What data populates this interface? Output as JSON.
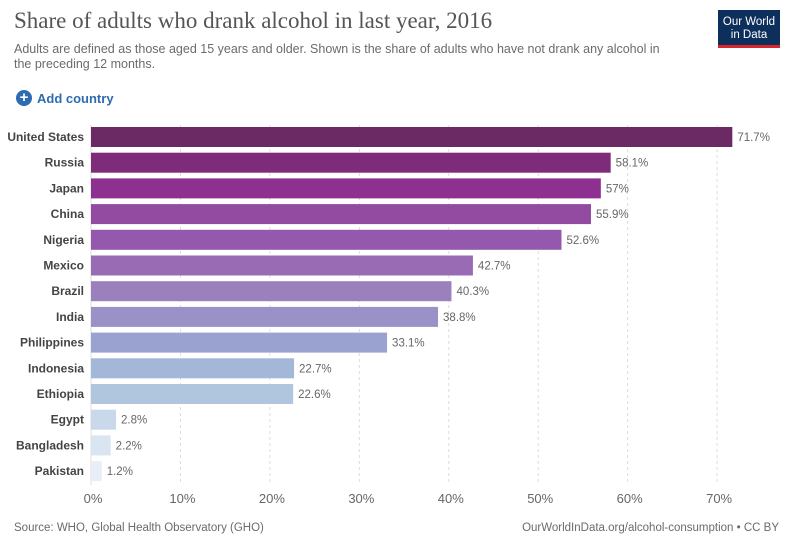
{
  "header": {
    "title": "Share of adults who drank alcohol in last year, 2016",
    "subtitle": "Adults are defined as those aged 15 years and older. Shown is the share of adults who have not drank any alcohol in the preceding 12 months.",
    "logo_line1": "Our World",
    "logo_line2": "in Data"
  },
  "controls": {
    "add_country_label": "Add country",
    "add_icon": "plus-circle-icon"
  },
  "footer": {
    "source": "Source: WHO, Global Health Observatory (GHO)",
    "credit": "OurWorldInData.org/alcohol-consumption • CC BY"
  },
  "colors": {
    "logo_bg": "#0d2f5c",
    "logo_accent": "#d9262c",
    "link": "#2e6bb0"
  },
  "chart_data": {
    "type": "bar",
    "orientation": "horizontal",
    "categories": [
      "United States",
      "Russia",
      "Japan",
      "China",
      "Nigeria",
      "Mexico",
      "Brazil",
      "India",
      "Philippines",
      "Indonesia",
      "Ethiopia",
      "Egypt",
      "Bangladesh",
      "Pakistan"
    ],
    "values": [
      71.7,
      58.1,
      57,
      55.9,
      52.6,
      42.7,
      40.3,
      38.8,
      33.1,
      22.7,
      22.6,
      2.8,
      2.2,
      1.2
    ],
    "value_labels": [
      "71.7%",
      "58.1%",
      "57%",
      "55.9%",
      "52.6%",
      "42.7%",
      "40.3%",
      "38.8%",
      "33.1%",
      "22.7%",
      "22.6%",
      "2.8%",
      "2.2%",
      "1.2%"
    ],
    "bar_colors": [
      "#6b2a64",
      "#7e2b7a",
      "#8e3090",
      "#924ba0",
      "#9459ad",
      "#9a6bb5",
      "#9a80bd",
      "#9a92c6",
      "#9aa3cf",
      "#a3b7d9",
      "#b0c6df",
      "#c9d9eb",
      "#d9e5f1",
      "#e7eef6"
    ],
    "xticks": [
      0,
      10,
      20,
      30,
      40,
      50,
      60,
      70
    ],
    "xtick_labels": [
      "0%",
      "10%",
      "20%",
      "30%",
      "40%",
      "50%",
      "60%",
      "70%"
    ],
    "xlim": [
      0,
      72
    ],
    "grid": true
  }
}
